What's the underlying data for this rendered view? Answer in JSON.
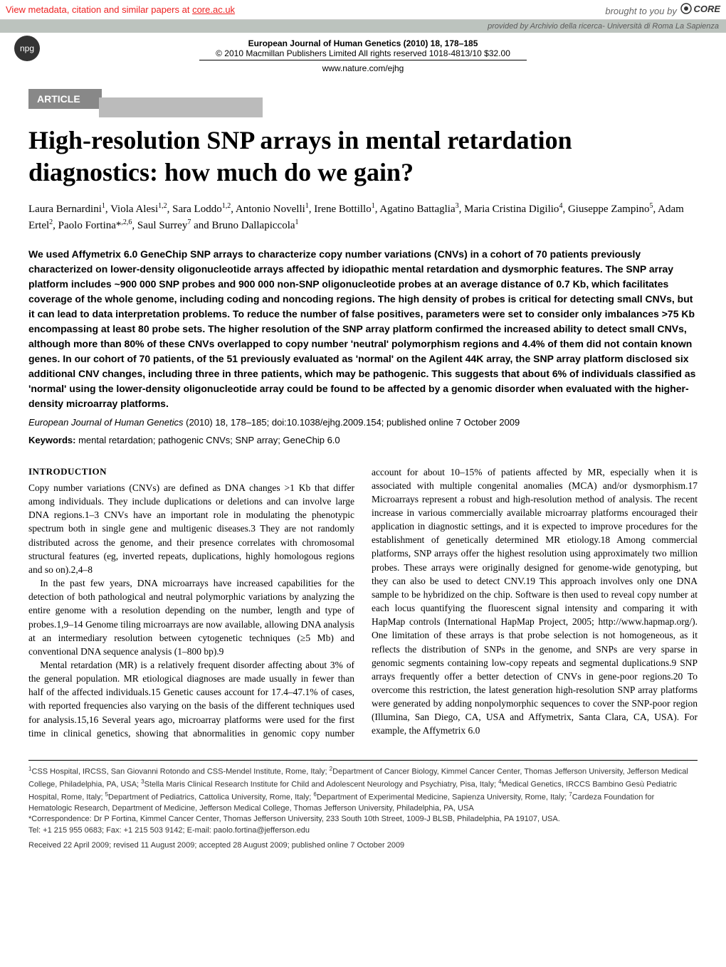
{
  "core_banner": {
    "left_text": "View metadata, citation and similar papers at ",
    "left_link": "core.ac.uk",
    "right_prefix": "brought to you by ",
    "right_logo": "CORE"
  },
  "provided_bar": "provided by Archivio della ricerca- Università di Roma La Sapienza",
  "npg": "npg",
  "journal_header": {
    "line1": "European Journal of Human Genetics (2010) 18, 178–185",
    "line2": "© 2010 Macmillan Publishers Limited  All rights reserved  1018-4813/10  $32.00",
    "line3": "www.nature.com/ejhg"
  },
  "article_badge": "ARTICLE",
  "title": "High-resolution SNP arrays in mental retardation diagnostics: how much do we gain?",
  "authors_html": "Laura Bernardini<sup>1</sup>, Viola Alesi<sup>1,2</sup>, Sara Loddo<sup>1,2</sup>, Antonio Novelli<sup>1</sup>, Irene Bottillo<sup>1</sup>, Agatino Battaglia<sup>3</sup>, Maria Cristina Digilio<sup>4</sup>, Giuseppe Zampino<sup>5</sup>, Adam Ertel<sup>2</sup>, Paolo Fortina*<sup>,2,6</sup>, Saul Surrey<sup>7</sup> and Bruno Dallapiccola<sup>1</sup>",
  "abstract": "We used Affymetrix 6.0 GeneChip SNP arrays to characterize copy number variations (CNVs) in a cohort of 70 patients previously characterized on lower-density oligonucleotide arrays affected by idiopathic mental retardation and dysmorphic features. The SNP array platform includes ~900 000 SNP probes and 900 000 non-SNP oligonucleotide probes at an average distance of 0.7 Kb, which facilitates coverage of the whole genome, including coding and noncoding regions. The high density of probes is critical for detecting small CNVs, but it can lead to data interpretation problems. To reduce the number of false positives, parameters were set to consider only imbalances >75 Kb encompassing at least 80 probe sets. The higher resolution of the SNP array platform confirmed the increased ability to detect small CNVs, although more than 80% of these CNVs overlapped to copy number 'neutral' polymorphism regions and 4.4% of them did not contain known genes. In our cohort of 70 patients, of the 51 previously evaluated as 'normal' on the Agilent 44K array, the SNP array platform disclosed six additional CNV changes, including three in three patients, which may be pathogenic. This suggests that about 6% of individuals classified as 'normal' using the lower-density oligonucleotide array could be found to be affected by a genomic disorder when evaluated with the higher-density microarray platforms.",
  "citation": {
    "journal": "European Journal of Human Genetics",
    "rest": " (2010) 18, 178–185; doi:10.1038/ejhg.2009.154; published online 7 October 2009"
  },
  "keywords": {
    "label": "Keywords:",
    "text": " mental retardation; pathogenic CNVs; SNP array; GeneChip 6.0"
  },
  "intro_heading": "INTRODUCTION",
  "intro_col": {
    "p1": "Copy number variations (CNVs) are defined as DNA changes >1 Kb that differ among individuals. They include duplications or deletions and can involve large DNA regions.1–3 CNVs have an important role in modulating the phenotypic spectrum both in single gene and multigenic diseases.3 They are not randomly distributed across the genome, and their presence correlates with chromosomal structural features (eg, inverted repeats, duplications, highly homologous regions and so on).2,4–8",
    "p2": "In the past few years, DNA microarrays have increased capabilities for the detection of both pathological and neutral polymorphic variations by analyzing the entire genome with a resolution depending on the number, length and type of probes.1,9–14 Genome tiling microarrays are now available, allowing DNA analysis at an intermediary resolution between cytogenetic techniques (≥5 Mb) and conventional DNA sequence analysis (1–800 bp).9",
    "p3": "Mental retardation (MR) is a relatively frequent disorder affecting about 3% of the general population. MR etiological diagnoses are made usually in fewer than half of the affected individuals.15 Genetic causes account for 17.4–47.1% of cases, with reported frequencies also varying on the basis of the different techniques used for analysis.15,16 Several years ago, microarray platforms were used for the first time in clinical genetics, showing that abnormalities in genomic copy number account for about 10–15% of patients affected by MR, especially when it is associated with multiple congenital anomalies (MCA) and/or dysmorphism.17 Microarrays represent a robust and high-resolution method of analysis. The recent increase in various commercially available microarray platforms encouraged their application in diagnostic settings, and it is expected to improve procedures for the establishment of genetically determined MR etiology.18 Among commercial platforms, SNP arrays offer the highest resolution using approximately two million probes. These arrays were originally designed for genome-wide genotyping, but they can also be used to detect CNV.19 This approach involves only one DNA sample to be hybridized on the chip. Software is then used to reveal copy number at each locus quantifying the fluorescent signal intensity and comparing it with HapMap controls (International HapMap Project, 2005; http://www.hapmap.org/). One limitation of these arrays is that probe selection is not homogeneous, as it reflects the distribution of SNPs in the genome, and SNPs are very sparse in genomic segments containing low-copy repeats and segmental duplications.9 SNP arrays frequently offer a better detection of CNVs in gene-poor regions.20 To overcome this restriction, the latest generation high-resolution SNP array platforms were generated by adding nonpolymorphic sequences to cover the SNP-poor region (Illumina, San Diego, CA, USA and Affymetrix, Santa Clara, CA, USA). For example, the Affymetrix 6.0"
  },
  "affiliations_html": "<sup>1</sup>CSS Hospital, IRCSS, San Giovanni Rotondo and CSS-Mendel Institute, Rome, Italy; <sup>2</sup>Department of Cancer Biology, Kimmel Cancer Center, Thomas Jefferson University, Jefferson Medical College, Philadelphia, PA, USA; <sup>3</sup>Stella Maris Clinical Research Institute for Child and Adolescent Neurology and Psychiatry, Pisa, Italy; <sup>4</sup>Medical Genetics, IRCCS Bambino Gesù Pediatric Hospital, Rome, Italy; <sup>5</sup>Department of Pediatrics, Cattolica University, Rome, Italy; <sup>6</sup>Department of Experimental Medicine, Sapienza University, Rome, Italy; <sup>7</sup>Cardeza Foundation for Hematologic Research, Department of Medicine, Jefferson Medical College, Thomas Jefferson University, Philadelphia, PA, USA",
  "correspondence": "*Correspondence: Dr P Fortina, Kimmel Cancer Center, Thomas Jefferson University, 233 South 10th Street, 1009-J BLSB, Philadelphia, PA 19107, USA.",
  "tel": "Tel: +1 215 955 0683; Fax: +1 215 503 9142; E-mail: paolo.fortina@jefferson.edu",
  "received": "Received 22 April 2009; revised 11 August 2009; accepted 28 August 2009; published online 7 October 2009"
}
